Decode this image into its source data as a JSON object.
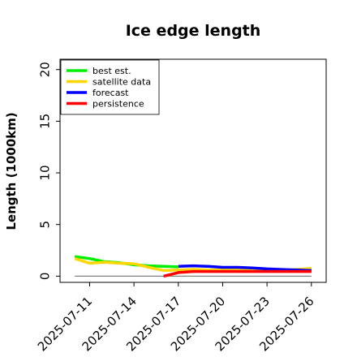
{
  "chart_data": {
    "type": "line",
    "title": "Ice edge length",
    "xlabel": "",
    "ylabel": "Length (1000km)",
    "ylim": [
      -0.6,
      21
    ],
    "yticks": [
      0,
      5,
      10,
      15,
      20
    ],
    "xlim": [
      "2025-07-09",
      "2025-07-27"
    ],
    "xticks": [
      "2025-07-11",
      "2025-07-14",
      "2025-07-17",
      "2025-07-20",
      "2025-07-23",
      "2025-07-26"
    ],
    "highlight_tick": "2025-07-17",
    "highlight_color": "#228B22",
    "legend_position": "top-left",
    "grid": false,
    "reference_line": {
      "y": 0,
      "from": "2025-07-10",
      "to": "2025-07-26",
      "color": "#808080"
    },
    "series": [
      {
        "name": "best est.",
        "color": "#00ee00",
        "x": [
          "2025-07-10",
          "2025-07-11",
          "2025-07-12",
          "2025-07-13",
          "2025-07-14",
          "2025-07-15",
          "2025-07-16",
          "2025-07-17"
        ],
        "y": [
          1.9,
          1.7,
          1.4,
          1.3,
          1.1,
          1.0,
          0.95,
          0.9
        ]
      },
      {
        "name": "satellite data",
        "color": "#ffd700",
        "x": [
          "2025-07-10",
          "2025-07-11",
          "2025-07-12",
          "2025-07-13",
          "2025-07-14",
          "2025-07-15",
          "2025-07-16",
          "2025-07-17",
          "2025-07-18",
          "2025-07-19",
          "2025-07-20",
          "2025-07-21",
          "2025-07-22",
          "2025-07-23",
          "2025-07-24",
          "2025-07-25",
          "2025-07-26"
        ],
        "y": [
          1.7,
          1.25,
          1.35,
          1.25,
          1.2,
          0.85,
          0.55,
          0.6,
          0.65,
          0.6,
          0.6,
          0.6,
          0.6,
          0.6,
          0.6,
          0.65,
          0.75
        ]
      },
      {
        "name": "forecast",
        "color": "#0000ff",
        "x": [
          "2025-07-17",
          "2025-07-18",
          "2025-07-19",
          "2025-07-20",
          "2025-07-21",
          "2025-07-22",
          "2025-07-23",
          "2025-07-24",
          "2025-07-25",
          "2025-07-26"
        ],
        "y": [
          0.95,
          1.0,
          0.95,
          0.85,
          0.85,
          0.8,
          0.7,
          0.65,
          0.6,
          0.55
        ]
      },
      {
        "name": "persistence",
        "color": "#ff0000",
        "x": [
          "2025-07-16",
          "2025-07-17",
          "2025-07-18",
          "2025-07-19",
          "2025-07-20",
          "2025-07-21",
          "2025-07-22",
          "2025-07-23",
          "2025-07-24",
          "2025-07-25",
          "2025-07-26"
        ],
        "y": [
          0.0,
          0.35,
          0.45,
          0.45,
          0.45,
          0.45,
          0.45,
          0.45,
          0.45,
          0.45,
          0.45
        ]
      }
    ]
  }
}
